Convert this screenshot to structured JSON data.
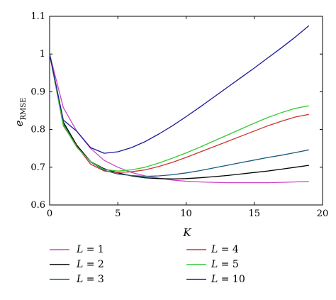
{
  "chart_data": {
    "type": "line",
    "xlabel": "K",
    "ylabel": "e",
    "ylabel_sub": "RMSE",
    "xlim": [
      0,
      20
    ],
    "ylim": [
      0.6,
      1.1
    ],
    "xticks": [
      0,
      5,
      10,
      15,
      20
    ],
    "yticks": [
      0.6,
      0.7,
      0.8,
      0.9,
      1,
      1.1
    ],
    "ytick_labels": [
      "0.6",
      "0.7",
      "0.8",
      "0.9",
      "1",
      "1.1"
    ],
    "grid": false,
    "legend_position": "below",
    "x": [
      0,
      1,
      2,
      3,
      4,
      5,
      6,
      7,
      8,
      9,
      10,
      11,
      12,
      13,
      14,
      15,
      16,
      17,
      18,
      19
    ],
    "series": [
      {
        "name": "L = 1",
        "var": "L",
        "val": "1",
        "color": "#cc44cc",
        "values": [
          1.0,
          0.858,
          0.795,
          0.75,
          0.718,
          0.7,
          0.686,
          0.677,
          0.671,
          0.666,
          0.663,
          0.661,
          0.66,
          0.659,
          0.659,
          0.659,
          0.659,
          0.66,
          0.661,
          0.662
        ]
      },
      {
        "name": "L = 2",
        "var": "L",
        "val": "2",
        "color": "#000000",
        "values": [
          1.0,
          0.82,
          0.758,
          0.715,
          0.696,
          0.685,
          0.677,
          0.672,
          0.67,
          0.669,
          0.67,
          0.672,
          0.675,
          0.678,
          0.682,
          0.686,
          0.69,
          0.695,
          0.7,
          0.705
        ]
      },
      {
        "name": "L = 3",
        "var": "L",
        "val": "3",
        "color": "#1a5a7a",
        "values": [
          1.0,
          0.815,
          0.755,
          0.714,
          0.692,
          0.682,
          0.678,
          0.676,
          0.677,
          0.68,
          0.685,
          0.691,
          0.698,
          0.705,
          0.712,
          0.719,
          0.726,
          0.732,
          0.739,
          0.746
        ]
      },
      {
        "name": "L = 4",
        "var": "L",
        "val": "4",
        "color": "#cc3333",
        "values": [
          1.0,
          0.81,
          0.755,
          0.708,
          0.69,
          0.686,
          0.688,
          0.693,
          0.702,
          0.713,
          0.726,
          0.74,
          0.754,
          0.768,
          0.782,
          0.796,
          0.81,
          0.822,
          0.833,
          0.84
        ]
      },
      {
        "name": "L = 5",
        "var": "L",
        "val": "5",
        "color": "#33cc33",
        "values": [
          1.0,
          0.812,
          0.752,
          0.715,
          0.694,
          0.69,
          0.693,
          0.7,
          0.711,
          0.724,
          0.738,
          0.753,
          0.769,
          0.785,
          0.801,
          0.817,
          0.832,
          0.845,
          0.856,
          0.863
        ]
      },
      {
        "name": "L = 10",
        "var": "L",
        "val": "10",
        "color": "#1a1a99",
        "values": [
          1.0,
          0.825,
          0.795,
          0.752,
          0.737,
          0.741,
          0.752,
          0.768,
          0.788,
          0.81,
          0.834,
          0.859,
          0.885,
          0.911,
          0.937,
          0.963,
          0.99,
          1.017,
          1.045,
          1.075
        ]
      }
    ]
  }
}
